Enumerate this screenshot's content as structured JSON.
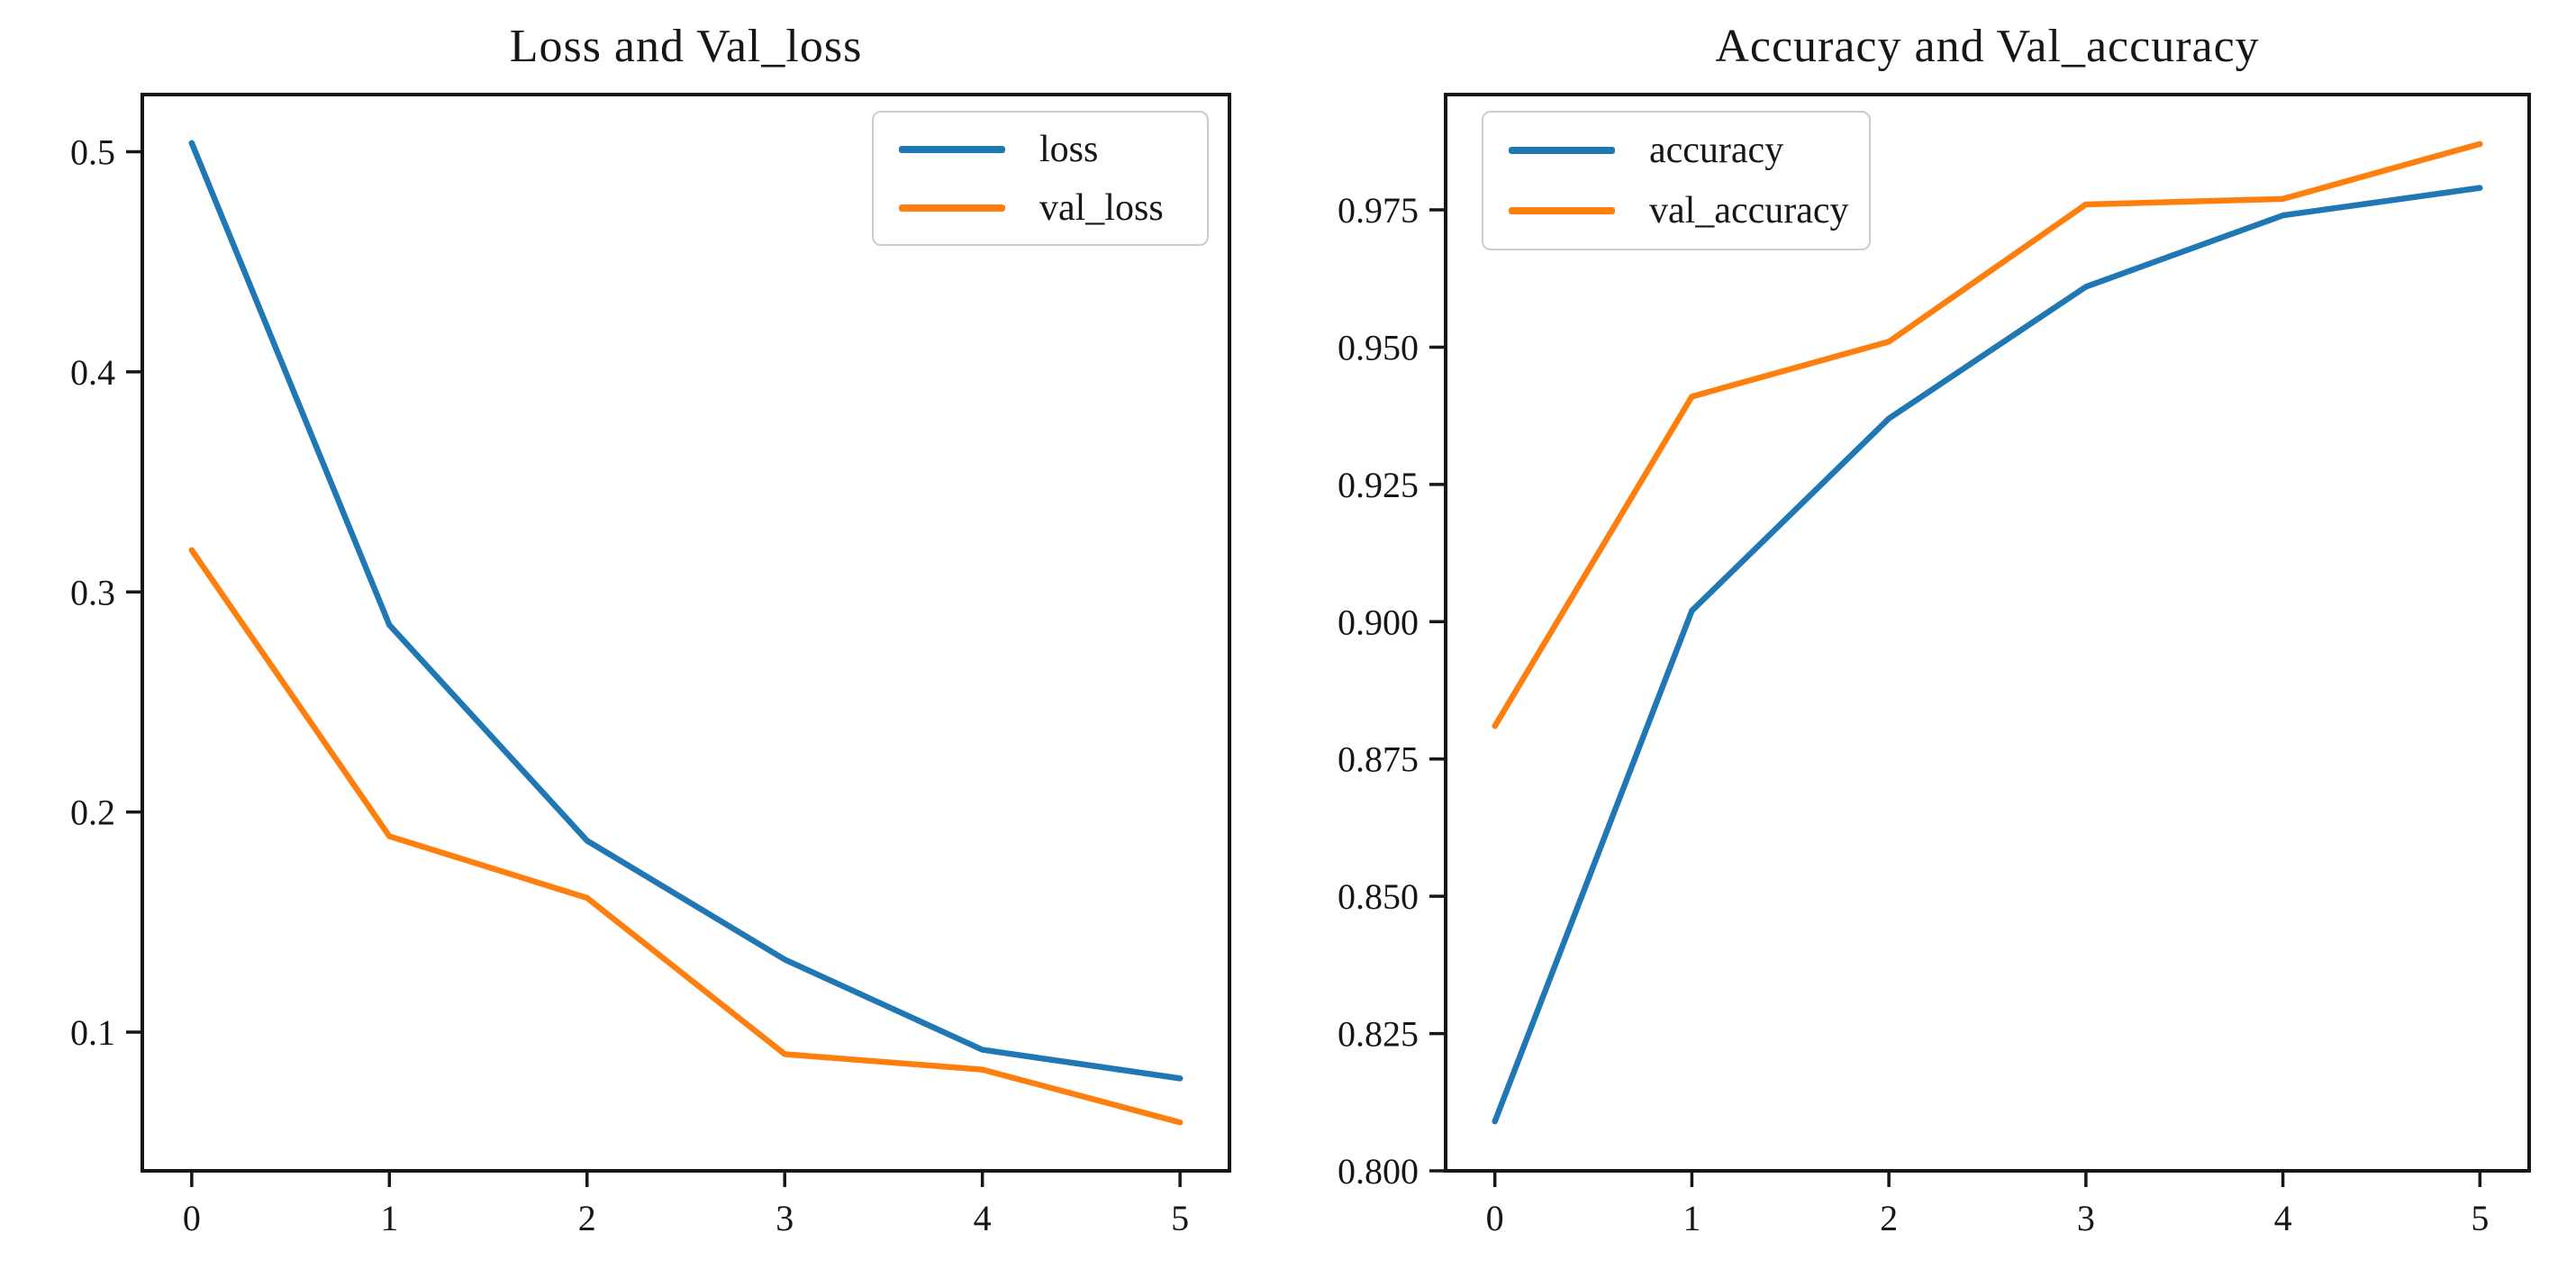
{
  "page": {
    "background": "#ffffff"
  },
  "colors": {
    "blue": "#1f77b4",
    "orange": "#ff7f0e",
    "axis": "#161616",
    "text": "#161616",
    "legend_border": "#cccccc"
  },
  "chart_data": [
    {
      "type": "line",
      "title": "Loss and Val_loss",
      "x": [
        0,
        1,
        2,
        3,
        4,
        5
      ],
      "xtick_labels": [
        "0",
        "1",
        "2",
        "3",
        "4",
        "5"
      ],
      "yticks": [
        0.1,
        0.2,
        0.3,
        0.4,
        0.5
      ],
      "ytick_labels": [
        "0.1",
        "0.2",
        "0.3",
        "0.4",
        "0.5"
      ],
      "xlim": [
        -0.25,
        5.25
      ],
      "ylim": [
        0.037,
        0.526
      ],
      "grid": false,
      "legend_position": "upper-right",
      "series": [
        {
          "name": "loss",
          "color": "blue",
          "values": [
            0.504,
            0.285,
            0.187,
            0.133,
            0.092,
            0.079
          ]
        },
        {
          "name": "val_loss",
          "color": "orange",
          "values": [
            0.319,
            0.189,
            0.161,
            0.09,
            0.083,
            0.059
          ]
        }
      ]
    },
    {
      "type": "line",
      "title": "Accuracy and Val_accuracy",
      "x": [
        0,
        1,
        2,
        3,
        4,
        5
      ],
      "xtick_labels": [
        "0",
        "1",
        "2",
        "3",
        "4",
        "5"
      ],
      "yticks": [
        0.8,
        0.825,
        0.85,
        0.875,
        0.9,
        0.925,
        0.95,
        0.975
      ],
      "ytick_labels": [
        "0.800",
        "0.825",
        "0.850",
        "0.875",
        "0.900",
        "0.925",
        "0.950",
        "0.975"
      ],
      "xlim": [
        -0.25,
        5.25
      ],
      "ylim": [
        0.8,
        0.996
      ],
      "grid": false,
      "legend_position": "upper-left",
      "series": [
        {
          "name": "accuracy",
          "color": "blue",
          "values": [
            0.809,
            0.902,
            0.937,
            0.961,
            0.974,
            0.979
          ]
        },
        {
          "name": "val_accuracy",
          "color": "orange",
          "values": [
            0.881,
            0.941,
            0.951,
            0.976,
            0.977,
            0.987
          ]
        }
      ]
    }
  ]
}
